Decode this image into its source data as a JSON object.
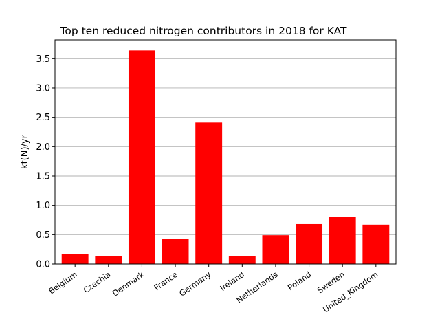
{
  "chart_data": {
    "type": "bar",
    "title": "Top ten reduced nitrogen contributors in 2018 for  KAT",
    "xlabel": "",
    "ylabel": "kt(N)/yr",
    "categories": [
      "Belgium",
      "Czechia",
      "Denmark",
      "France",
      "Germany",
      "Ireland",
      "Netherlands",
      "Poland",
      "Sweden",
      "United_Kingdom"
    ],
    "values": [
      0.17,
      0.13,
      3.64,
      0.43,
      2.41,
      0.13,
      0.49,
      0.68,
      0.8,
      0.67
    ],
    "ylim": [
      0,
      3.82
    ],
    "yticks": [
      "0.0",
      "0.5",
      "1.0",
      "1.5",
      "2.0",
      "2.5",
      "3.0",
      "3.5"
    ],
    "bar_color": "#ff0000",
    "grid": "y",
    "legend": "none"
  }
}
